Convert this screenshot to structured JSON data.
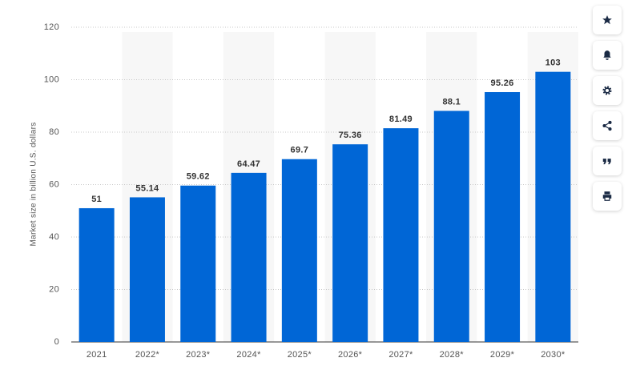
{
  "chart_data": {
    "type": "bar",
    "y_axis_label": "Market size in billion U.S. dollars",
    "categories": [
      "2021",
      "2022*",
      "2023*",
      "2024*",
      "2025*",
      "2026*",
      "2027*",
      "2028*",
      "2029*",
      "2030*"
    ],
    "values": [
      51,
      55.14,
      59.62,
      64.47,
      69.7,
      75.36,
      81.49,
      88.1,
      95.26,
      103
    ],
    "color": "#0066d6",
    "ylim": [
      0,
      120
    ],
    "yticks": [
      0,
      20,
      40,
      60,
      80,
      100,
      120
    ],
    "grid": true
  }
}
